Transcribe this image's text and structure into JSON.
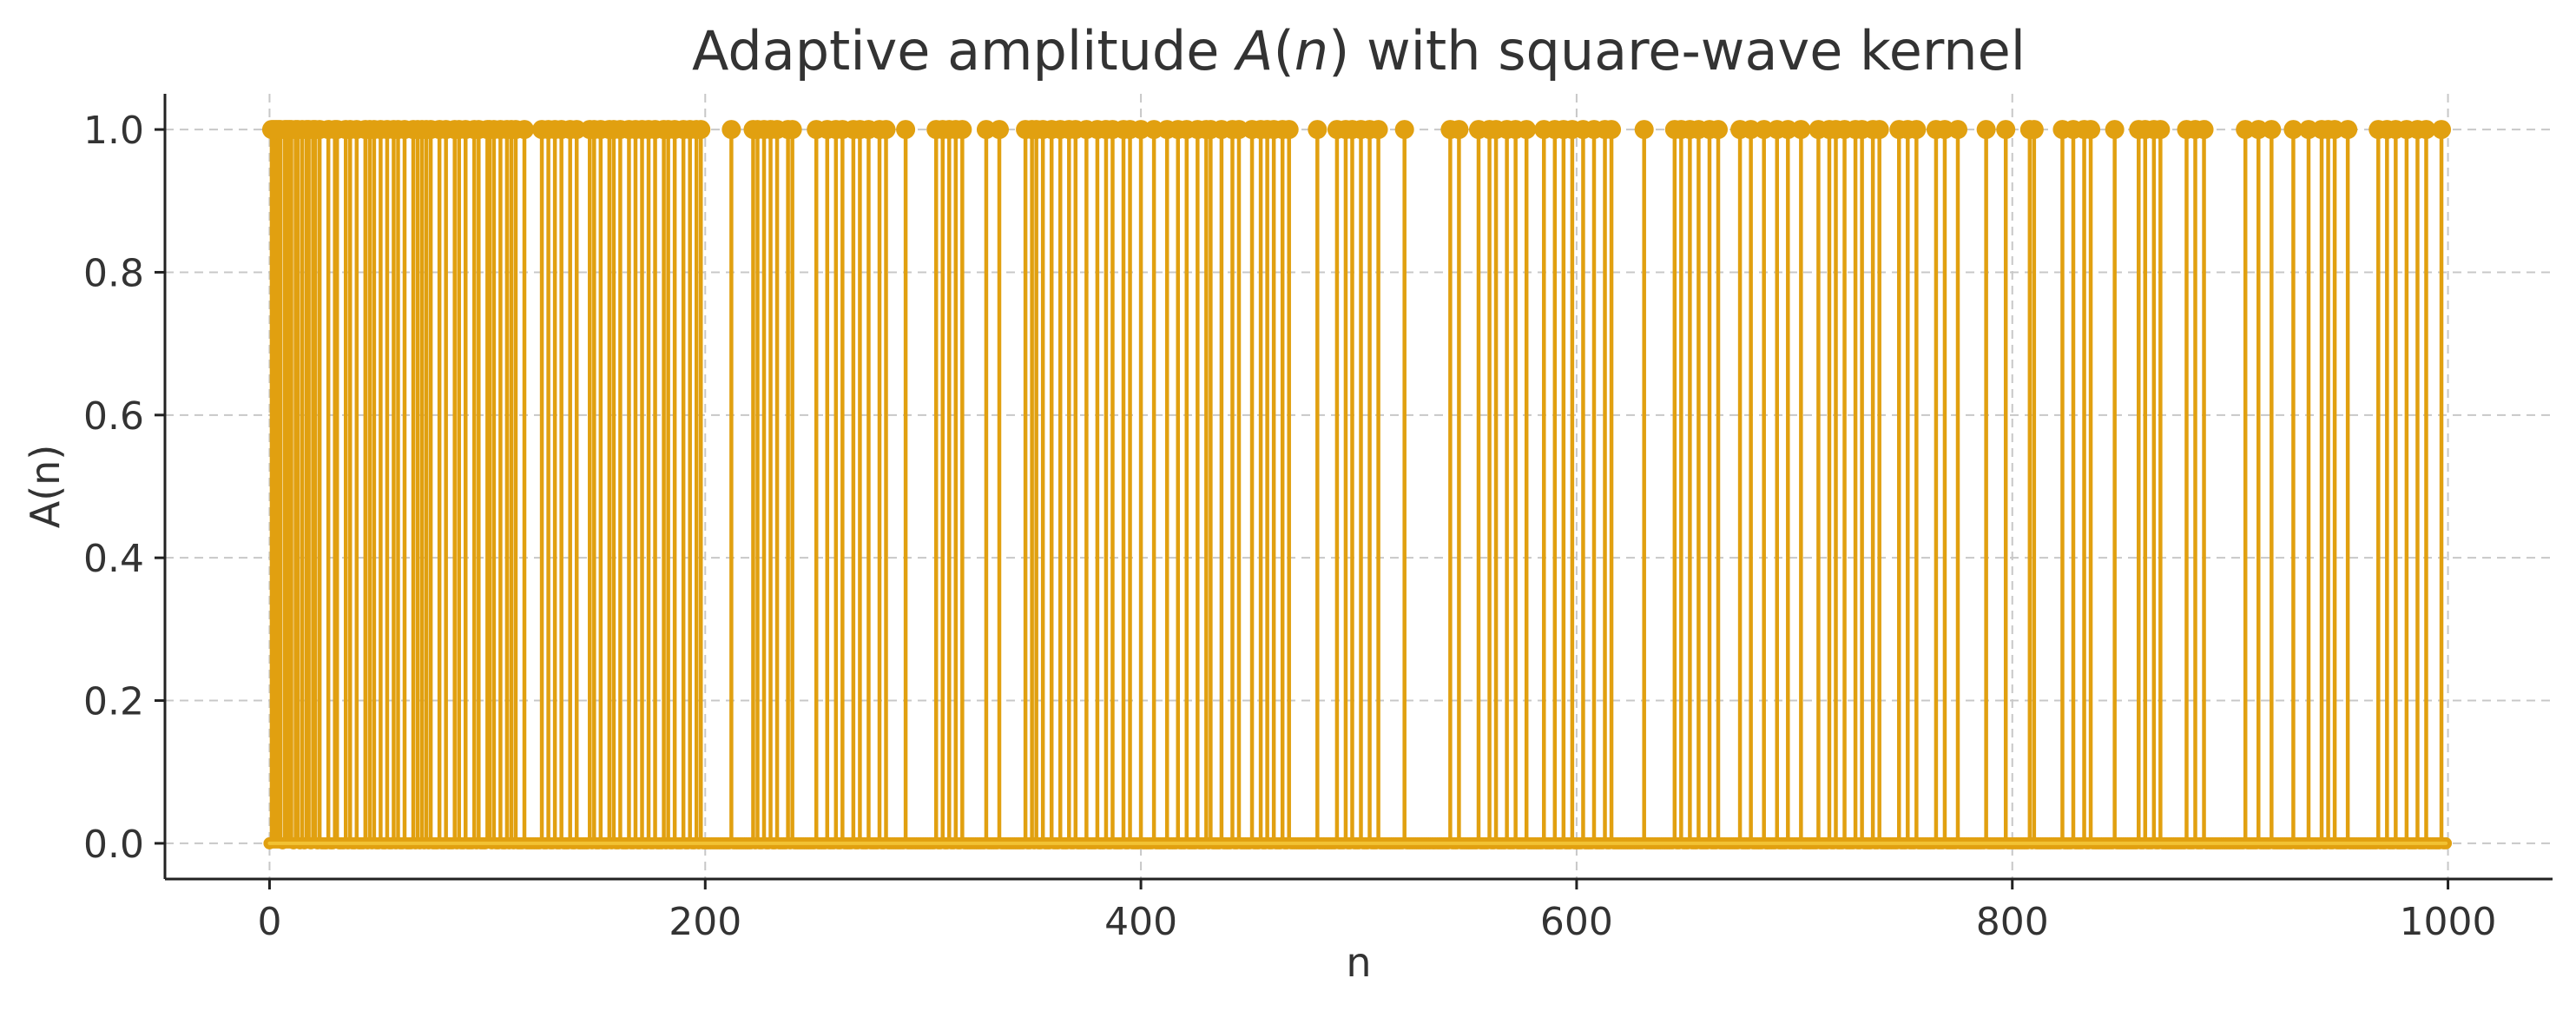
{
  "chart_data": {
    "type": "stem",
    "title": "Adaptive amplitude A(n) with square-wave kernel",
    "title_parts": {
      "prefix": "Adaptive amplitude ",
      "var": "A",
      "open": "(",
      "arg": "n",
      "close": ")",
      "suffix": " with square-wave kernel"
    },
    "xlabel": "n",
    "ylabel": "A(n)",
    "xlim": [
      -48,
      1048
    ],
    "ylim": [
      -0.05,
      1.05
    ],
    "x_ticks": [
      0,
      200,
      400,
      600,
      800,
      1000
    ],
    "x_tick_labels": [
      "0",
      "200",
      "400",
      "600",
      "800",
      "1000"
    ],
    "y_ticks": [
      0.0,
      0.2,
      0.4,
      0.6,
      0.8,
      1.0
    ],
    "y_tick_labels": [
      "0.0",
      "0.2",
      "0.4",
      "0.6",
      "0.8",
      "1.0"
    ],
    "grid": true,
    "color": "#E1A010",
    "x_range": [
      0,
      999
    ],
    "series": [
      {
        "values_at_one": [
          1,
          2,
          3,
          4,
          5,
          7,
          8,
          9,
          10,
          12,
          13,
          15,
          17,
          18,
          20,
          21,
          23,
          27,
          30,
          31,
          35,
          37,
          40,
          44,
          46,
          48,
          51,
          54,
          57,
          59,
          62,
          66,
          68,
          70,
          72,
          74,
          78,
          81,
          85,
          87,
          90,
          94,
          96,
          100,
          101,
          103,
          106,
          109,
          111,
          113,
          117,
          125,
          128,
          131,
          134,
          138,
          141,
          147,
          149,
          152,
          156,
          158,
          161,
          165,
          168,
          171,
          174,
          177,
          181,
          183,
          186,
          190,
          193,
          196,
          198,
          212,
          222,
          224,
          227,
          230,
          233,
          238,
          240,
          251,
          256,
          260,
          263,
          268,
          271,
          275,
          280,
          283,
          292,
          306,
          309,
          312,
          315,
          318,
          329,
          335,
          347,
          350,
          352,
          355,
          359,
          363,
          367,
          370,
          375,
          380,
          384,
          387,
          392,
          395,
          400,
          406,
          412,
          417,
          421,
          426,
          430,
          432,
          437,
          442,
          445,
          451,
          455,
          458,
          461,
          465,
          468,
          481,
          490,
          494,
          497,
          501,
          505,
          509,
          521,
          542,
          546,
          555,
          560,
          563,
          568,
          572,
          577,
          585,
          590,
          594,
          598,
          603,
          608,
          613,
          616,
          631,
          645,
          648,
          652,
          656,
          661,
          665,
          675,
          680,
          686,
          692,
          697,
          703,
          711,
          716,
          719,
          723,
          728,
          731,
          736,
          739,
          748,
          752,
          756,
          765,
          769,
          775,
          788,
          797,
          808,
          810,
          823,
          828,
          833,
          836,
          847,
          858,
          861,
          865,
          868,
          880,
          884,
          888,
          907,
          913,
          919,
          929,
          936,
          942,
          945,
          948,
          954,
          968,
          972,
          976,
          981,
          986,
          990,
          997
        ]
      }
    ]
  }
}
